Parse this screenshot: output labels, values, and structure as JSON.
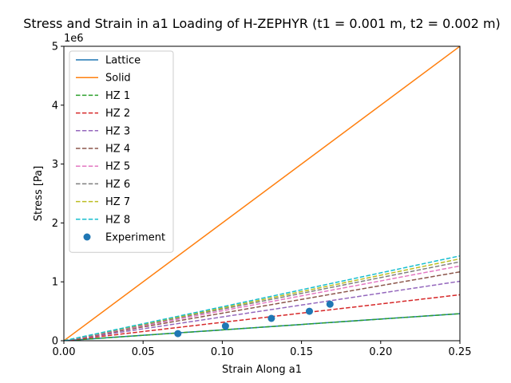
{
  "chart_data": {
    "type": "line",
    "title": "Stress and Strain in a1 Loading of H-ZEPHYR (t1 = 0.001 m, t2 = 0.002 m)",
    "xlabel": "Strain Along a1",
    "ylabel": "Stress [Pa]",
    "y_offset_text": "1e6",
    "xlim": [
      0,
      0.25
    ],
    "ylim": [
      0,
      5000000
    ],
    "xticks": [
      0.0,
      0.05,
      0.1,
      0.15,
      0.2,
      0.25
    ],
    "xtick_labels": [
      "0.00",
      "0.05",
      "0.10",
      "0.15",
      "0.20",
      "0.25"
    ],
    "yticks": [
      0,
      1000000,
      2000000,
      3000000,
      4000000,
      5000000
    ],
    "ytick_labels": [
      "0",
      "1",
      "2",
      "3",
      "4",
      "5"
    ],
    "grid": false,
    "legend_position": "upper-left",
    "series": [
      {
        "name": "Lattice",
        "style": "solid",
        "color": "#1f77b4",
        "x": [
          0,
          0.25
        ],
        "y": [
          0,
          460000
        ]
      },
      {
        "name": "Solid",
        "style": "solid",
        "color": "#ff7f0e",
        "x": [
          0,
          0.25
        ],
        "y": [
          0,
          5000000
        ]
      },
      {
        "name": "HZ 1",
        "style": "dashed",
        "color": "#2ca02c",
        "x": [
          0,
          0.25
        ],
        "y": [
          0,
          460000
        ]
      },
      {
        "name": "HZ 2",
        "style": "dashed",
        "color": "#d62728",
        "x": [
          0,
          0.25
        ],
        "y": [
          0,
          780000
        ]
      },
      {
        "name": "HZ 3",
        "style": "dashed",
        "color": "#9467bd",
        "x": [
          0,
          0.25
        ],
        "y": [
          0,
          1010000
        ]
      },
      {
        "name": "HZ 4",
        "style": "dashed",
        "color": "#8c564b",
        "x": [
          0,
          0.25
        ],
        "y": [
          0,
          1170000
        ]
      },
      {
        "name": "HZ 5",
        "style": "dashed",
        "color": "#e377c2",
        "x": [
          0,
          0.25
        ],
        "y": [
          0,
          1270000
        ]
      },
      {
        "name": "HZ 6",
        "style": "dashed",
        "color": "#7f7f7f",
        "x": [
          0,
          0.25
        ],
        "y": [
          0,
          1340000
        ]
      },
      {
        "name": "HZ 7",
        "style": "dashed",
        "color": "#bcbd22",
        "x": [
          0,
          0.25
        ],
        "y": [
          0,
          1390000
        ]
      },
      {
        "name": "HZ 8",
        "style": "dashed",
        "color": "#17becf",
        "x": [
          0,
          0.25
        ],
        "y": [
          0,
          1440000
        ]
      }
    ],
    "scatter": {
      "name": "Experiment",
      "color": "#1f77b4",
      "x": [
        0.072,
        0.102,
        0.131,
        0.155,
        0.168
      ],
      "y": [
        120000,
        250000,
        380000,
        500000,
        620000
      ]
    }
  }
}
